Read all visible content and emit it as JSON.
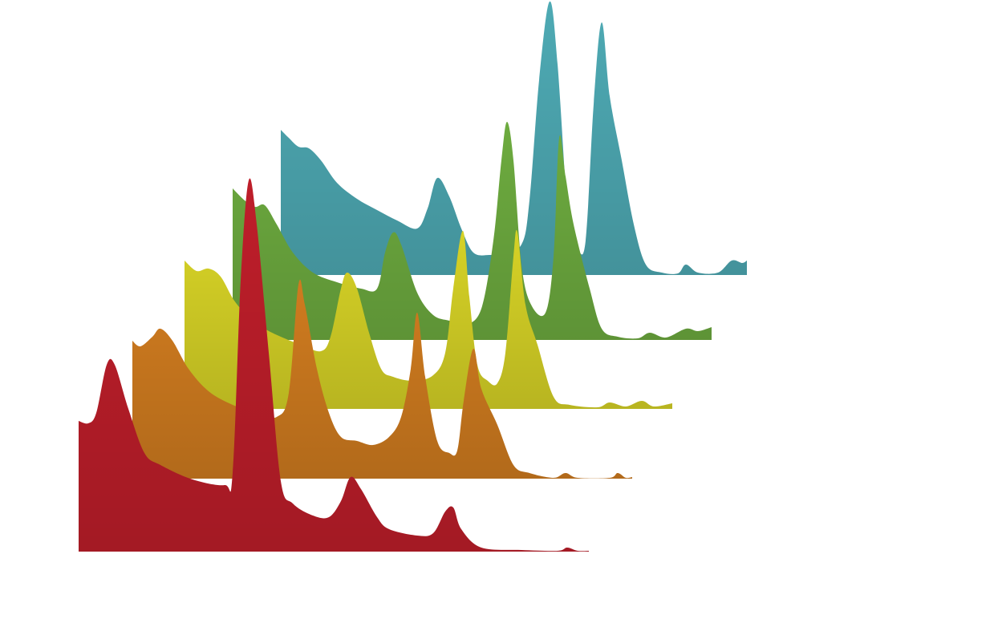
{
  "chart_data": {
    "type": "ridgeline",
    "series": [
      {
        "color": "#be1e2a",
        "x": [
          0,
          12,
          22,
          35,
          45,
          62,
          82,
          102,
          142,
          182,
          192,
          202,
          212,
          222,
          237,
          252,
          267,
          292,
          312,
          327,
          339,
          352,
          372,
          387,
          422,
          442,
          457,
          467,
          477,
          502,
          552,
          597,
          609,
          622,
          636
        ],
        "values": [
          163,
          160,
          173,
          233,
          233,
          178,
          123,
          108,
          90,
          83,
          98,
          338,
          463,
          408,
          248,
          88,
          60,
          45,
          43,
          63,
          93,
          78,
          43,
          28,
          20,
          23,
          50,
          55,
          28,
          5,
          2,
          1,
          5,
          1,
          1
        ]
      },
      {
        "color": "#cf7b1f",
        "x": [
          0,
          10,
          25,
          35,
          50,
          70,
          95,
          125,
          155,
          180,
          195,
          207,
          215,
          230,
          245,
          260,
          280,
          300,
          320,
          335,
          347,
          355,
          365,
          380,
          395,
          405,
          413,
          425,
          435,
          455,
          475,
          495,
          525,
          540,
          555,
          595,
          605,
          615,
          623
        ],
        "values": [
          172,
          165,
          177,
          187,
          172,
          137,
          109,
          92,
          82,
          77,
          107,
          242,
          217,
          137,
          82,
          52,
          47,
          42,
          52,
          77,
          137,
          207,
          127,
          47,
          32,
          35,
          97,
          162,
          112,
          67,
          17,
          7,
          1,
          7,
          1,
          1,
          7,
          1,
          2
        ]
      },
      {
        "color": "#d6d226",
        "x": [
          0,
          15,
          30,
          45,
          62,
          80,
          100,
          120,
          145,
          170,
          182,
          195,
          203,
          215,
          230,
          245,
          260,
          285,
          310,
          325,
          335,
          347,
          355,
          365,
          378,
          390,
          400,
          410,
          415,
          425,
          440,
          460,
          480,
          515,
          530,
          550,
          570,
          585,
          608
        ],
        "values": [
          185,
          172,
          175,
          165,
          135,
          115,
          100,
          90,
          80,
          72,
          90,
          150,
          170,
          150,
          95,
          50,
          40,
          35,
          42,
          70,
          150,
          222,
          140,
          55,
          35,
          32,
          70,
          190,
          220,
          130,
          80,
          15,
          5,
          2,
          8,
          3,
          10,
          3,
          7
        ]
      },
      {
        "color": "#6dab3f",
        "x": [
          0,
          15,
          28,
          40,
          55,
          75,
          100,
          130,
          160,
          180,
          190,
          200,
          210,
          230,
          250,
          270,
          290,
          310,
          325,
          335,
          342,
          350,
          360,
          372,
          390,
          400,
          407,
          415,
          425,
          445,
          460,
          480,
          505,
          520,
          540,
          565,
          580,
          597
        ],
        "values": [
          189,
          174,
          166,
          168,
          144,
          109,
          84,
          72,
          64,
          64,
          109,
          134,
          119,
          59,
          31,
          24,
          19,
          39,
          124,
          224,
          272,
          224,
          94,
          44,
          34,
          104,
          252,
          204,
          144,
          64,
          14,
          4,
          2,
          9,
          3,
          14,
          11,
          16
        ]
      },
      {
        "color": "#4eaab4",
        "x": [
          0,
          10,
          22,
          35,
          50,
          70,
          95,
          120,
          145,
          170,
          183,
          195,
          210,
          225,
          240,
          260,
          275,
          300,
          310,
          322,
          335,
          345,
          360,
          370,
          380,
          390,
          400,
          410,
          425,
          440,
          455,
          475,
          495,
          505,
          520,
          545,
          562,
          575,
          581
        ],
        "values": [
          181,
          171,
          160,
          158,
          143,
          115,
          95,
          81,
          68,
          58,
          83,
          121,
          98,
          58,
          28,
          25,
          28,
          38,
          93,
          243,
          341,
          263,
          43,
          31,
          43,
          213,
          315,
          223,
          143,
          63,
          13,
          3,
          2,
          13,
          3,
          3,
          18,
          15,
          18
        ]
      }
    ]
  }
}
